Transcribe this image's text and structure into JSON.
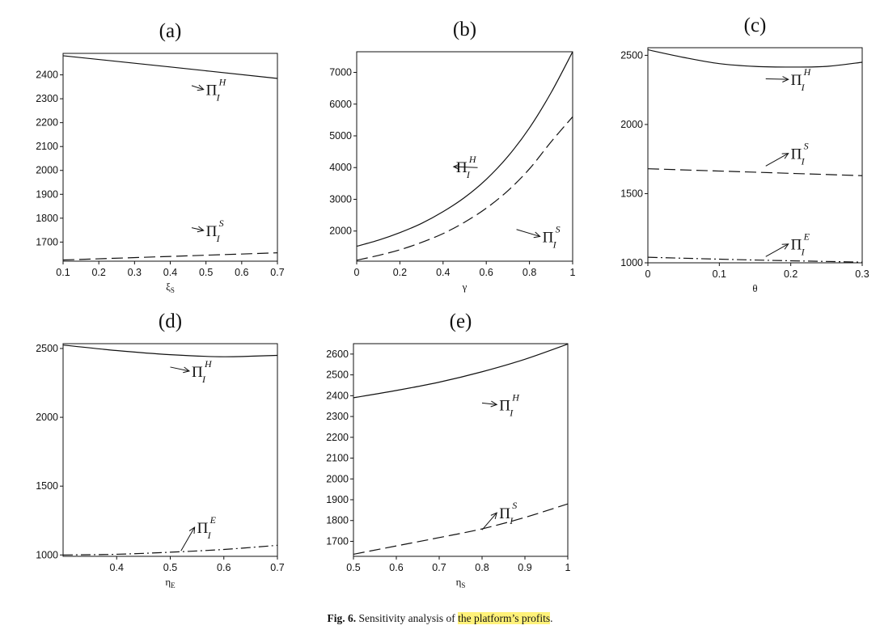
{
  "chart_data": [
    {
      "type": "line",
      "panel": "(a)",
      "xlabel": "ξ",
      "xlabel_sub": "S",
      "xlim": [
        0.1,
        0.7
      ],
      "ylim": [
        1620,
        2490
      ],
      "xticks": [
        0.1,
        0.2,
        0.3,
        0.4,
        0.5,
        0.6,
        0.7
      ],
      "yticks": [
        1700,
        1800,
        1900,
        2000,
        2100,
        2200,
        2300,
        2400
      ],
      "series": [
        {
          "name": "Π_I^H",
          "style": "solid",
          "x": [
            0.1,
            0.4,
            0.7
          ],
          "y": [
            2480,
            2433,
            2385
          ]
        },
        {
          "name": "Π_I^S",
          "style": "dashed",
          "x": [
            0.1,
            0.4,
            0.7
          ],
          "y": [
            1625,
            1640,
            1655
          ]
        }
      ],
      "annotations": [
        {
          "base": "Π",
          "sup": "H",
          "sub": "I",
          "x": 0.5,
          "y": 2315,
          "arrow_to": [
            0.46,
            2355
          ]
        },
        {
          "base": "Π",
          "sup": "S",
          "sub": "I",
          "x": 0.5,
          "y": 1725,
          "arrow_to": [
            0.46,
            1760
          ]
        }
      ]
    },
    {
      "type": "line",
      "panel": "(b)",
      "xlabel": "γ",
      "xlabel_sub": "",
      "xlim": [
        0,
        1
      ],
      "ylim": [
        1050,
        7650
      ],
      "xticks": [
        0,
        0.2,
        0.4,
        0.6,
        0.8,
        1
      ],
      "yticks": [
        2000,
        3000,
        4000,
        5000,
        6000,
        7000
      ],
      "series": [
        {
          "name": "Π_I^H",
          "style": "solid",
          "x": [
            0,
            0.1,
            0.2,
            0.3,
            0.4,
            0.5,
            0.6,
            0.7,
            0.8,
            0.9,
            1.0
          ],
          "y": [
            1520,
            1710,
            1950,
            2240,
            2610,
            3060,
            3630,
            4350,
            5250,
            6360,
            7650
          ]
        },
        {
          "name": "Π_I^S",
          "style": "dashed",
          "x": [
            0,
            0.1,
            0.2,
            0.3,
            0.4,
            0.5,
            0.6,
            0.7,
            0.8,
            0.9,
            1.0
          ],
          "y": [
            1080,
            1230,
            1410,
            1640,
            1920,
            2280,
            2720,
            3270,
            3960,
            4810,
            5600
          ]
        }
      ],
      "annotations": [
        {
          "base": "Π",
          "sup": "H",
          "sub": "I",
          "x": 0.46,
          "y": 3850,
          "arrow_to": [
            0.56,
            4000
          ]
        },
        {
          "base": "Π",
          "sup": "S",
          "sub": "I",
          "x": 0.86,
          "y": 1650,
          "arrow_to": [
            0.74,
            2050
          ]
        }
      ]
    },
    {
      "type": "line",
      "panel": "(c)",
      "xlabel": "θ",
      "xlabel_sub": "",
      "xlim": [
        0,
        0.3
      ],
      "ylim": [
        1000,
        2555
      ],
      "xticks": [
        0,
        0.1,
        0.2,
        0.3
      ],
      "yticks": [
        1000,
        1500,
        2000,
        2500
      ],
      "series": [
        {
          "name": "Π_I^H",
          "style": "solid",
          "x": [
            0,
            0.05,
            0.1,
            0.15,
            0.2,
            0.25,
            0.3
          ],
          "y": [
            2540,
            2485,
            2440,
            2420,
            2415,
            2420,
            2450
          ]
        },
        {
          "name": "Π_I^S",
          "style": "dashed",
          "x": [
            0,
            0.15,
            0.3
          ],
          "y": [
            1680,
            1655,
            1630
          ]
        },
        {
          "name": "Π_I^E",
          "style": "dashdot",
          "x": [
            0,
            0.15,
            0.3
          ],
          "y": [
            1040,
            1020,
            1005
          ]
        }
      ],
      "annotations": [
        {
          "base": "Π",
          "sup": "H",
          "sub": "I",
          "x": 0.2,
          "y": 2285,
          "arrow_to": [
            0.165,
            2330
          ]
        },
        {
          "base": "Π",
          "sup": "S",
          "sub": "I",
          "x": 0.2,
          "y": 1750,
          "arrow_to": [
            0.165,
            1700
          ]
        },
        {
          "base": "Π",
          "sup": "E",
          "sub": "I",
          "x": 0.2,
          "y": 1095,
          "arrow_to": [
            0.165,
            1045
          ]
        }
      ]
    },
    {
      "type": "line",
      "panel": "(d)",
      "xlabel": "η",
      "xlabel_sub": "E",
      "xlim": [
        0.3,
        0.7
      ],
      "ylim": [
        990,
        2535
      ],
      "xticks": [
        0.4,
        0.5,
        0.6,
        0.7
      ],
      "yticks": [
        1000,
        1500,
        2000,
        2500
      ],
      "series": [
        {
          "name": "Π_I^H",
          "style": "solid",
          "x": [
            0.3,
            0.4,
            0.5,
            0.6,
            0.7
          ],
          "y": [
            2525,
            2485,
            2455,
            2440,
            2450
          ]
        },
        {
          "name": "Π_I^E",
          "style": "dashdot",
          "x": [
            0.3,
            0.4,
            0.5,
            0.6,
            0.7
          ],
          "y": [
            1000,
            1005,
            1020,
            1040,
            1070
          ]
        }
      ],
      "annotations": [
        {
          "base": "Π",
          "sup": "H",
          "sub": "I",
          "x": 0.54,
          "y": 2295,
          "arrow_to": [
            0.5,
            2365
          ]
        },
        {
          "base": "Π",
          "sup": "E",
          "sub": "I",
          "x": 0.55,
          "y": 1160,
          "arrow_to": [
            0.52,
            1030
          ]
        }
      ]
    },
    {
      "type": "line",
      "panel": "(e)",
      "xlabel": "η",
      "xlabel_sub": "S",
      "xlim": [
        0.5,
        1.0
      ],
      "ylim": [
        1628,
        2650
      ],
      "xticks": [
        0.5,
        0.6,
        0.7,
        0.8,
        0.9,
        1.0
      ],
      "yticks": [
        1700,
        1800,
        1900,
        2000,
        2100,
        2200,
        2300,
        2400,
        2500,
        2600
      ],
      "series": [
        {
          "name": "Π_I^H",
          "style": "solid",
          "x": [
            0.5,
            0.6,
            0.7,
            0.8,
            0.9,
            1.0
          ],
          "y": [
            2390,
            2425,
            2465,
            2515,
            2575,
            2648
          ]
        },
        {
          "name": "Π_I^S",
          "style": "dashed",
          "x": [
            0.5,
            0.6,
            0.7,
            0.8,
            0.9,
            1.0
          ],
          "y": [
            1638,
            1678,
            1718,
            1760,
            1815,
            1880
          ]
        }
      ],
      "annotations": [
        {
          "base": "Π",
          "sup": "H",
          "sub": "I",
          "x": 0.84,
          "y": 2330,
          "arrow_to": [
            0.8,
            2365
          ]
        },
        {
          "base": "Π",
          "sup": "S",
          "sub": "I",
          "x": 0.84,
          "y": 1810,
          "arrow_to": [
            0.8,
            1755
          ]
        }
      ]
    }
  ],
  "caption": {
    "label": "Fig. 6.",
    "text": "Sensitivity analysis of",
    "highlight": "the platform’s profits",
    "end": "."
  },
  "colors": {
    "line": "#111111",
    "frame": "#111111",
    "highlight": "#fff27a"
  }
}
